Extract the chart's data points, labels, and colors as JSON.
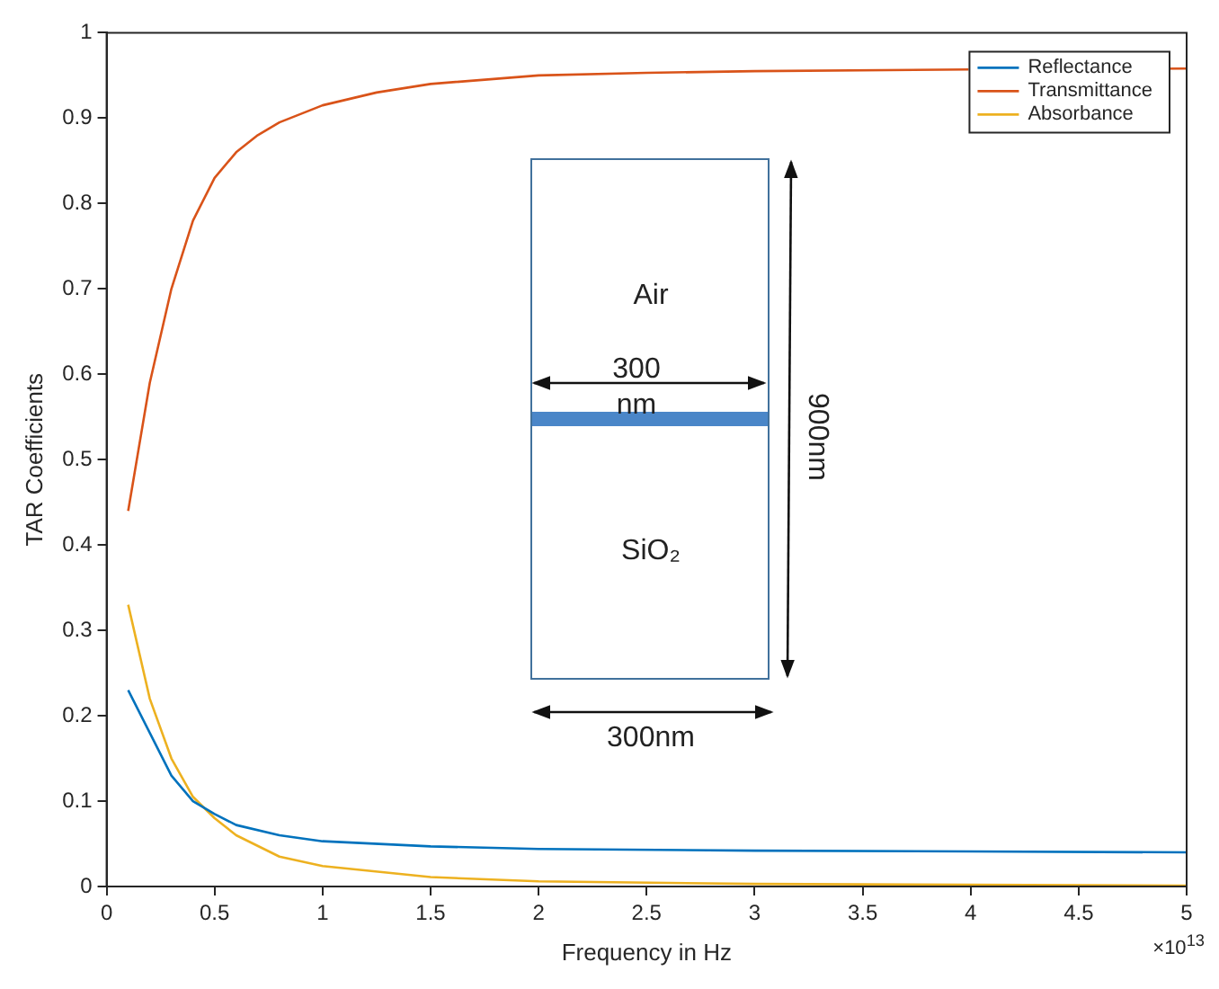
{
  "chart_data": {
    "type": "line",
    "xlabel": "Frequency in Hz",
    "ylabel": "TAR Coefficients",
    "xlim": [
      0,
      5
    ],
    "xticks": [
      0,
      0.5,
      1,
      1.5,
      2,
      2.5,
      3,
      3.5,
      4,
      4.5,
      5
    ],
    "ylim": [
      0,
      1
    ],
    "yticks": [
      0,
      0.1,
      0.2,
      0.3,
      0.4,
      0.5,
      0.6,
      0.7,
      0.8,
      0.9,
      1
    ],
    "grid": false,
    "legend": "top right",
    "marker": "none",
    "line_style": "solid",
    "series": [
      {
        "name": "Reflectance",
        "color": "#0072bd",
        "x": [
          0.1,
          0.2,
          0.3,
          0.4,
          0.5,
          0.6,
          0.8,
          1,
          1.5,
          2,
          3,
          4,
          5
        ],
        "values": [
          0.23,
          0.18,
          0.13,
          0.1,
          0.085,
          0.072,
          0.06,
          0.053,
          0.047,
          0.044,
          0.042,
          0.041,
          0.04
        ]
      },
      {
        "name": "Transmittance",
        "color": "#d95319",
        "x": [
          0.1,
          0.2,
          0.3,
          0.4,
          0.5,
          0.6,
          0.7,
          0.8,
          1,
          1.25,
          1.5,
          2,
          2.5,
          3,
          4,
          5
        ],
        "values": [
          0.44,
          0.59,
          0.7,
          0.78,
          0.83,
          0.86,
          0.88,
          0.895,
          0.915,
          0.93,
          0.94,
          0.95,
          0.953,
          0.955,
          0.957,
          0.958
        ]
      },
      {
        "name": "Absorbance",
        "color": "#edb120",
        "x": [
          0.1,
          0.2,
          0.3,
          0.4,
          0.5,
          0.6,
          0.8,
          1,
          1.5,
          2,
          3,
          4,
          5
        ],
        "values": [
          0.33,
          0.22,
          0.15,
          0.105,
          0.08,
          0.06,
          0.035,
          0.024,
          0.011,
          0.006,
          0.003,
          0.002,
          0.001
        ]
      }
    ],
    "annotations": [
      "Air",
      "300 nm",
      "SiO₂",
      "900nm",
      "300nm",
      "×10$^{13}$"
    ]
  }
}
